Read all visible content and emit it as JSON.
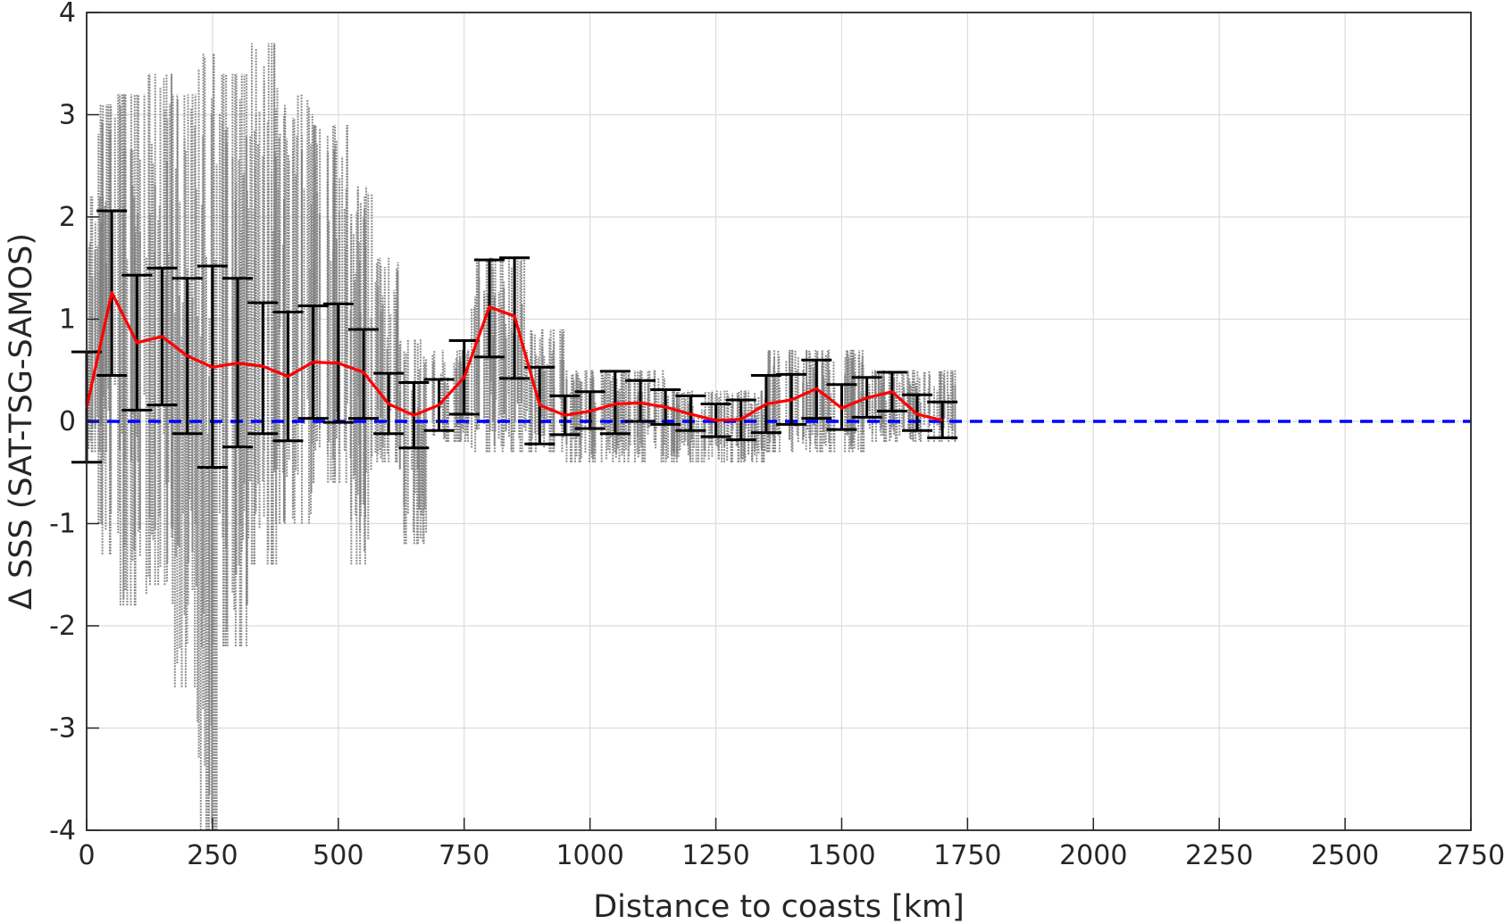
{
  "chart_data": {
    "type": "scatter",
    "xlabel": "Distance to coasts [km]",
    "ylabel": "Δ SSS (SAT-TSG-SAMOS)",
    "xlim": [
      0,
      2750
    ],
    "ylim": [
      -4,
      4
    ],
    "xticks": [
      0,
      250,
      500,
      750,
      1000,
      1250,
      1500,
      1750,
      2000,
      2250,
      2500,
      2750
    ],
    "yticks": [
      -4,
      -3,
      -2,
      -1,
      0,
      1,
      2,
      3,
      4
    ],
    "grid": true,
    "reference_line": {
      "y": 0,
      "style": "dashed",
      "color": "#0000ff"
    },
    "scatter_color": "#808080",
    "mean_line_color": "#ff0000",
    "errorbar_color": "#000000",
    "scatter_clusters": [
      {
        "x_from": 0,
        "x_to": 40,
        "y_low": -0.3,
        "y_high": 2.2
      },
      {
        "x_from": 20,
        "x_to": 60,
        "y_low": -1.3,
        "y_high": 3.1
      },
      {
        "x_from": 60,
        "x_to": 120,
        "y_low": -1.8,
        "y_high": 3.2
      },
      {
        "x_from": 120,
        "x_to": 170,
        "y_low": -1.6,
        "y_high": 3.4
      },
      {
        "x_from": 170,
        "x_to": 220,
        "y_low": -2.6,
        "y_high": 3.2
      },
      {
        "x_from": 220,
        "x_to": 260,
        "y_low": -4.0,
        "y_high": 3.6
      },
      {
        "x_from": 260,
        "x_to": 320,
        "y_low": -2.2,
        "y_high": 3.4
      },
      {
        "x_from": 320,
        "x_to": 380,
        "y_low": -1.4,
        "y_high": 3.7
      },
      {
        "x_from": 380,
        "x_to": 450,
        "y_low": -1.0,
        "y_high": 3.2
      },
      {
        "x_from": 450,
        "x_to": 520,
        "y_low": -0.6,
        "y_high": 2.9
      },
      {
        "x_from": 520,
        "x_to": 570,
        "y_low": -1.4,
        "y_high": 2.3
      },
      {
        "x_from": 570,
        "x_to": 620,
        "y_low": -0.4,
        "y_high": 1.6
      },
      {
        "x_from": 620,
        "x_to": 680,
        "y_low": -1.2,
        "y_high": 0.8
      },
      {
        "x_from": 680,
        "x_to": 760,
        "y_low": -0.2,
        "y_high": 0.7
      },
      {
        "x_from": 760,
        "x_to": 870,
        "y_low": -0.3,
        "y_high": 1.6
      },
      {
        "x_from": 870,
        "x_to": 950,
        "y_low": -0.3,
        "y_high": 0.9
      },
      {
        "x_from": 950,
        "x_to": 1150,
        "y_low": -0.4,
        "y_high": 0.5
      },
      {
        "x_from": 1150,
        "x_to": 1350,
        "y_low": -0.4,
        "y_high": 0.3
      },
      {
        "x_from": 1350,
        "x_to": 1550,
        "y_low": -0.3,
        "y_high": 0.7
      },
      {
        "x_from": 1550,
        "x_to": 1730,
        "y_low": -0.2,
        "y_high": 0.5
      }
    ],
    "series": [
      {
        "x": [
          0,
          50,
          100,
          150,
          200,
          250,
          300,
          350,
          400,
          450,
          500,
          550,
          600,
          650,
          700,
          750,
          800,
          850,
          900,
          950,
          1000,
          1050,
          1100,
          1150,
          1200,
          1250,
          1300,
          1350,
          1400,
          1450,
          1500,
          1550,
          1600,
          1650,
          1700
        ],
        "mean": [
          0.13,
          1.26,
          0.77,
          0.83,
          0.64,
          0.53,
          0.57,
          0.54,
          0.44,
          0.58,
          0.57,
          0.48,
          0.17,
          0.06,
          0.16,
          0.43,
          1.12,
          1.03,
          0.16,
          0.06,
          0.1,
          0.17,
          0.18,
          0.14,
          0.07,
          0.01,
          0.02,
          0.17,
          0.21,
          0.32,
          0.13,
          0.23,
          0.29,
          0.07,
          0.01
        ],
        "low": [
          -0.4,
          0.45,
          0.11,
          0.16,
          -0.12,
          -0.45,
          -0.25,
          -0.12,
          -0.19,
          0.03,
          -0.01,
          0.03,
          -0.12,
          -0.26,
          -0.09,
          0.07,
          0.63,
          0.42,
          -0.22,
          -0.13,
          -0.07,
          -0.12,
          0.0,
          -0.03,
          -0.09,
          -0.15,
          -0.18,
          -0.11,
          -0.03,
          0.03,
          -0.08,
          0.04,
          0.1,
          -0.09,
          -0.16
        ],
        "high": [
          0.68,
          2.06,
          1.43,
          1.5,
          1.4,
          1.52,
          1.4,
          1.16,
          1.07,
          1.13,
          1.15,
          0.9,
          0.47,
          0.38,
          0.41,
          0.79,
          1.58,
          1.6,
          0.53,
          0.25,
          0.29,
          0.49,
          0.4,
          0.31,
          0.25,
          0.17,
          0.21,
          0.45,
          0.46,
          0.6,
          0.36,
          0.43,
          0.48,
          0.26,
          0.19
        ]
      }
    ]
  }
}
